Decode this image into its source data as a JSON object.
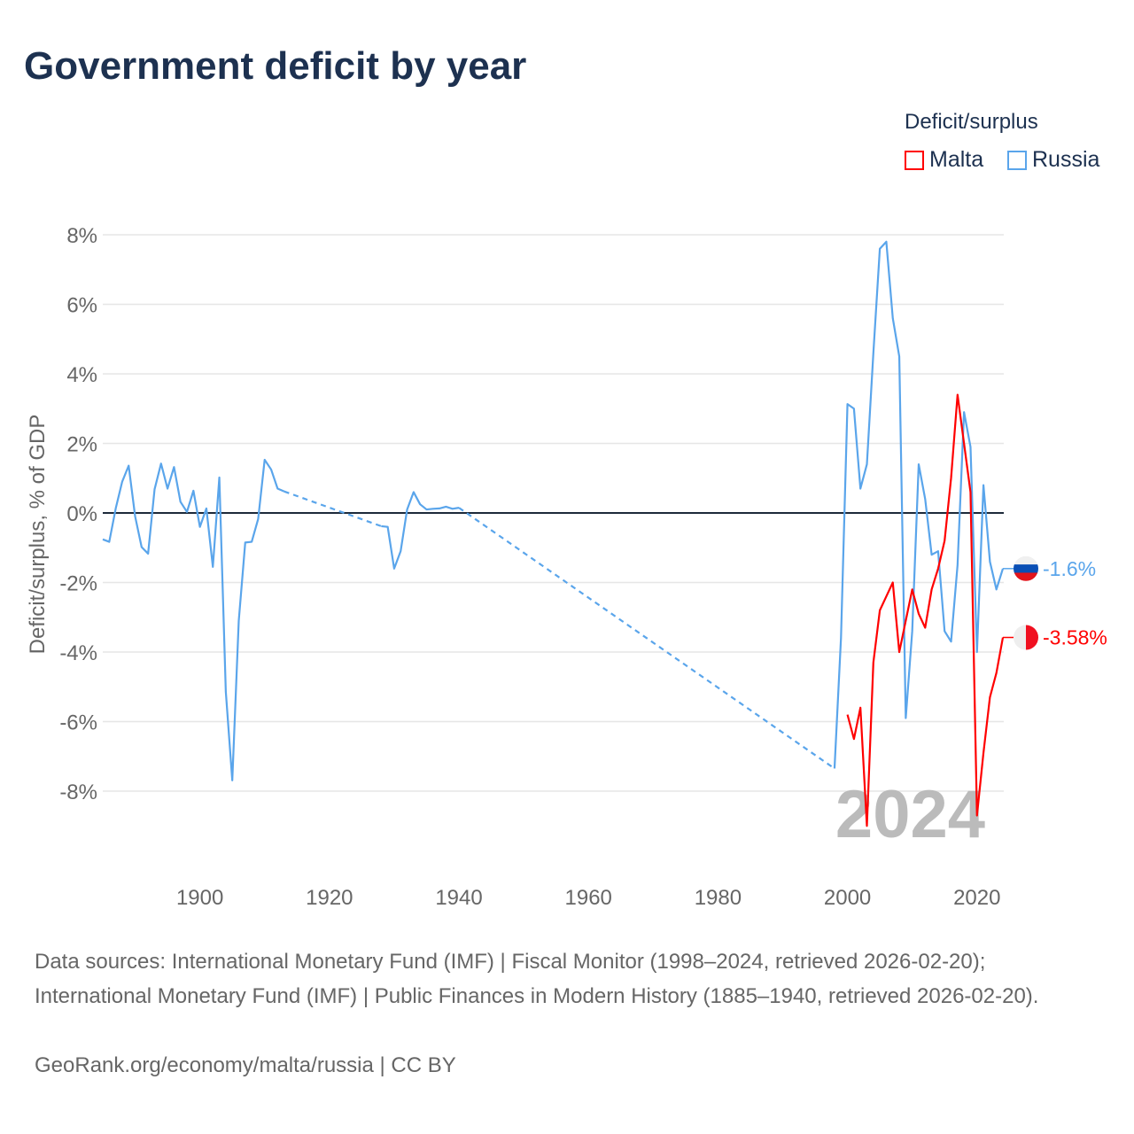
{
  "title": "Government deficit by year",
  "chart_data": {
    "type": "line",
    "title": "Government deficit by year",
    "ylabel": "Deficit/surplus, % of GDP",
    "xlabel": "",
    "xlim": [
      1885,
      2024
    ],
    "ylim": [
      -10,
      8.5
    ],
    "yticks": [
      8,
      6,
      4,
      2,
      0,
      -2,
      -4,
      -6,
      -8
    ],
    "ytick_labels": [
      "8%",
      "6%",
      "4%",
      "2%",
      "0%",
      "-2%",
      "-4%",
      "-6%",
      "-8%"
    ],
    "xticks": [
      1900,
      1920,
      1940,
      1960,
      1980,
      2000,
      2020
    ],
    "xtick_labels": [
      "1900",
      "1920",
      "1940",
      "1960",
      "1980",
      "2000",
      "2020"
    ],
    "grid": true,
    "legend_title": "Deficit/surplus",
    "legend_placement": "top-right",
    "year_watermark": "2024",
    "series": [
      {
        "name": "Malta",
        "color": "#ff0000",
        "end_label": "-3.58%",
        "points": [
          [
            2000,
            -5.8
          ],
          [
            2001,
            -6.5
          ],
          [
            2002,
            -5.6
          ],
          [
            2003,
            -9.0
          ],
          [
            2004,
            -4.3
          ],
          [
            2005,
            -2.8
          ],
          [
            2006,
            -2.4
          ],
          [
            2007,
            -2.0
          ],
          [
            2008,
            -4.0
          ],
          [
            2009,
            -3.1
          ],
          [
            2010,
            -2.2
          ],
          [
            2011,
            -2.9
          ],
          [
            2012,
            -3.3
          ],
          [
            2013,
            -2.2
          ],
          [
            2014,
            -1.6
          ],
          [
            2015,
            -0.8
          ],
          [
            2016,
            1.0
          ],
          [
            2017,
            3.4
          ],
          [
            2018,
            2.0
          ],
          [
            2019,
            0.6
          ],
          [
            2020,
            -8.7
          ],
          [
            2021,
            -6.9
          ],
          [
            2022,
            -5.3
          ],
          [
            2023,
            -4.6
          ],
          [
            2024,
            -3.58
          ]
        ]
      },
      {
        "name": "Russia",
        "color": "#5aa5eb",
        "end_label": "-1.6%",
        "points": [
          [
            1885,
            -0.76
          ],
          [
            1886,
            -0.83
          ],
          [
            1887,
            0.13
          ],
          [
            1888,
            0.9
          ],
          [
            1889,
            1.36
          ],
          [
            1890,
            -0.1
          ],
          [
            1891,
            -0.98
          ],
          [
            1892,
            -1.17
          ],
          [
            1893,
            0.68
          ],
          [
            1894,
            1.42
          ],
          [
            1895,
            0.7
          ],
          [
            1896,
            1.32
          ],
          [
            1897,
            0.32
          ],
          [
            1898,
            0.03
          ],
          [
            1899,
            0.64
          ],
          [
            1900,
            -0.4
          ],
          [
            1901,
            0.13
          ],
          [
            1902,
            -1.55
          ],
          [
            1903,
            1.02
          ],
          [
            1904,
            -5.14
          ],
          [
            1905,
            -7.69
          ],
          [
            1906,
            -3.1
          ],
          [
            1907,
            -0.85
          ],
          [
            1908,
            -0.83
          ],
          [
            1909,
            -0.17
          ],
          [
            1910,
            1.53
          ],
          [
            1911,
            1.25
          ],
          [
            1912,
            0.7
          ],
          [
            1913,
            0.62
          ],
          [
            1928,
            -0.38
          ],
          [
            1929,
            -0.4
          ],
          [
            1930,
            -1.6
          ],
          [
            1931,
            -1.1
          ],
          [
            1932,
            0.1
          ],
          [
            1933,
            0.6
          ],
          [
            1934,
            0.25
          ],
          [
            1935,
            0.1
          ],
          [
            1936,
            0.12
          ],
          [
            1937,
            0.13
          ],
          [
            1938,
            0.18
          ],
          [
            1939,
            0.12
          ],
          [
            1940,
            0.15
          ],
          [
            1998,
            -7.35
          ],
          [
            1999,
            -3.6
          ],
          [
            2000,
            3.13
          ],
          [
            2001,
            3.0
          ],
          [
            2002,
            0.7
          ],
          [
            2003,
            1.4
          ],
          [
            2004,
            4.6
          ],
          [
            2005,
            7.6
          ],
          [
            2006,
            7.8
          ],
          [
            2007,
            5.6
          ],
          [
            2008,
            4.5
          ],
          [
            2009,
            -5.9
          ],
          [
            2010,
            -3.4
          ],
          [
            2011,
            1.4
          ],
          [
            2012,
            0.4
          ],
          [
            2013,
            -1.2
          ],
          [
            2014,
            -1.1
          ],
          [
            2015,
            -3.4
          ],
          [
            2016,
            -3.7
          ],
          [
            2017,
            -1.5
          ],
          [
            2018,
            2.9
          ],
          [
            2019,
            1.9
          ],
          [
            2020,
            -4.0
          ],
          [
            2021,
            0.8
          ],
          [
            2022,
            -1.4
          ],
          [
            2023,
            -2.2
          ],
          [
            2024,
            -1.6
          ]
        ]
      }
    ]
  },
  "footer": {
    "sources": "Data sources: International Monetary Fund (IMF) | Fiscal Monitor (1998–2024, retrieved 2026-02-20); International Monetary Fund (IMF) | Public Finances in Modern History (1885–1940, retrieved 2026-02-20).",
    "credit": "GeoRank.org/economy/malta/russia | CC BY"
  }
}
